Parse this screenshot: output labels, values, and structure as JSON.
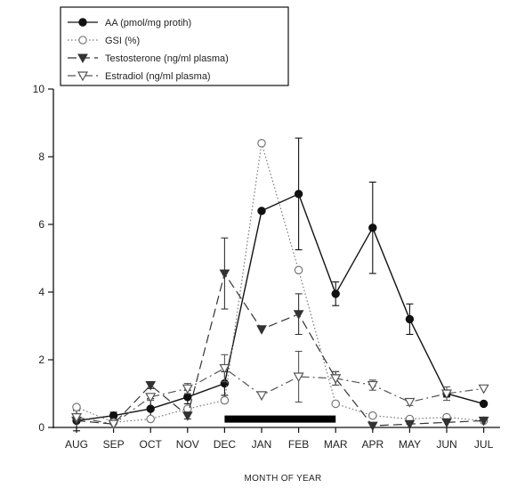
{
  "chart_data": {
    "type": "line",
    "title": "",
    "xlabel": "MONTH OF YEAR",
    "ylabel": "",
    "categories": [
      "AUG",
      "SEP",
      "OCT",
      "NOV",
      "DEC",
      "JAN",
      "FEB",
      "MAR",
      "APR",
      "MAY",
      "JUN",
      "JUL"
    ],
    "ylim": [
      0,
      10
    ],
    "yticks": [
      0,
      2,
      4,
      6,
      8,
      10
    ],
    "grid": false,
    "legend_position": "top-left",
    "series": [
      {
        "name": "AA (pmol/mg protih)",
        "marker": "filled-circle",
        "line": "solid",
        "values": [
          0.2,
          0.35,
          0.55,
          0.9,
          1.3,
          6.4,
          6.9,
          3.95,
          5.9,
          3.2,
          1.0,
          0.7
        ],
        "errors": [
          0.3,
          0.1,
          0.3,
          0.2,
          0.35,
          0,
          1.65,
          0.35,
          1.35,
          0.45,
          0.1,
          0
        ]
      },
      {
        "name": "GSI (%)",
        "marker": "open-circle",
        "line": "dotted",
        "values": [
          0.6,
          0.15,
          0.25,
          0.55,
          0.8,
          8.4,
          4.65,
          0.7,
          0.35,
          0.25,
          0.3,
          0.2
        ],
        "errors": [
          0,
          0,
          0,
          0,
          0,
          0,
          0,
          0,
          0,
          0,
          0,
          0
        ]
      },
      {
        "name": "Testosterone (ng/ml plasma)",
        "marker": "filled-triangle-down",
        "line": "dashed",
        "values": [
          0.2,
          0.1,
          1.25,
          0.35,
          4.55,
          2.9,
          3.35,
          1.45,
          0.05,
          0.1,
          0.15,
          0.2
        ],
        "errors": [
          0,
          0,
          0.1,
          0.1,
          1.05,
          0,
          0.6,
          0.2,
          0,
          0,
          0,
          0
        ]
      },
      {
        "name": "Estradiol (ng/ml plasma)",
        "marker": "open-triangle-down",
        "line": "dash-dot",
        "values": [
          0.3,
          0.1,
          0.9,
          1.15,
          1.75,
          0.95,
          1.5,
          1.45,
          1.25,
          0.75,
          1.0,
          1.15
        ],
        "errors": [
          0,
          0,
          0.1,
          0.15,
          0.4,
          0,
          0.75,
          0.2,
          0.15,
          0.1,
          0.2,
          0
        ]
      }
    ],
    "annotations": [
      {
        "type": "horizontal-bar",
        "from_category": "DEC",
        "to_category": "MAR",
        "y": 0.3,
        "color": "#000000"
      }
    ]
  }
}
